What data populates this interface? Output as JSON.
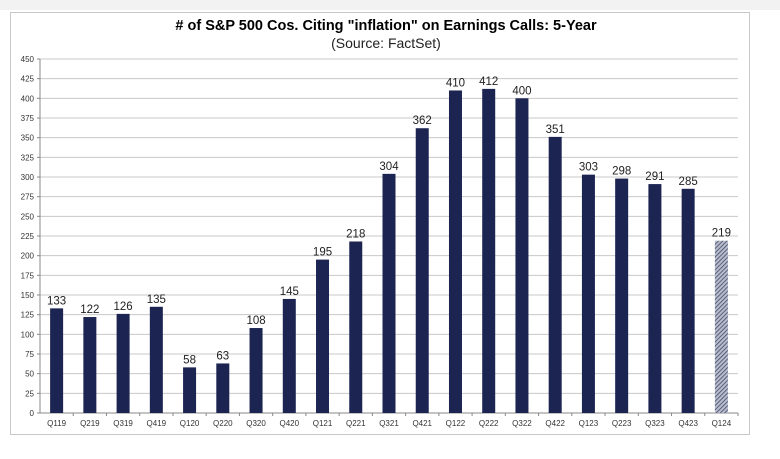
{
  "chart_data": {
    "type": "bar",
    "title": "# of S&P 500 Cos. Citing \"inflation\" on Earnings Calls: 5-Year",
    "subtitle": "(Source: FactSet)",
    "xlabel": "",
    "ylabel": "",
    "ylim": [
      0,
      450
    ],
    "ytick_step": 25,
    "grid": true,
    "categories": [
      "Q119",
      "Q219",
      "Q319",
      "Q419",
      "Q120",
      "Q220",
      "Q320",
      "Q420",
      "Q121",
      "Q221",
      "Q321",
      "Q421",
      "Q122",
      "Q222",
      "Q322",
      "Q422",
      "Q123",
      "Q223",
      "Q323",
      "Q423",
      "Q124"
    ],
    "values": [
      133,
      122,
      126,
      135,
      58,
      63,
      108,
      145,
      195,
      218,
      304,
      362,
      410,
      412,
      400,
      351,
      303,
      298,
      291,
      285,
      219
    ],
    "estimated": [
      false,
      false,
      false,
      false,
      false,
      false,
      false,
      false,
      false,
      false,
      false,
      false,
      false,
      false,
      false,
      false,
      false,
      false,
      false,
      false,
      true
    ],
    "colors": {
      "bar": "#1c2452",
      "estimate": "#8a90a8",
      "grid": "#c8c8c8"
    }
  }
}
